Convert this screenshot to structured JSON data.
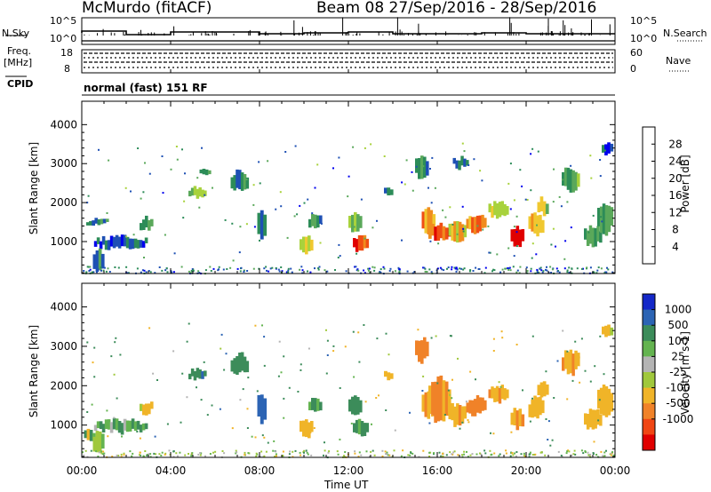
{
  "header": {
    "station": "McMurdo (fitACF)",
    "beam_and_dates": "Beam 08  27/Sep/2016 - 28/Sep/2016"
  },
  "strip_panels": {
    "nsky_label": "N.Sky",
    "nsearch_label": "N.Search",
    "nsky_ticks": [
      "10^5",
      "10^0"
    ],
    "nsearch_ticks": [
      "10^5",
      "10^0"
    ],
    "freq_label_line1": "Freq.",
    "freq_label_line2": "[MHz]",
    "freq_ticks": [
      "18",
      "8"
    ],
    "nave_label": "Nave",
    "nave_ticks": [
      "60",
      "0"
    ],
    "cpid_label": "CPID",
    "cpid_value": "normal (fast) 151 RF"
  },
  "colors": {
    "power_scale": [
      "#0000ee",
      "#1e50b4",
      "#2c8c58",
      "#5aa85a",
      "#a8d23c",
      "#f0c830",
      "#f08c1e",
      "#f04e14",
      "#e00000"
    ],
    "velocity_scale": [
      "#1428c8",
      "#2c64b4",
      "#3c8c5a",
      "#64b450",
      "#b4b4b4",
      "#a0c83c",
      "#f0b428",
      "#f08228",
      "#f04614",
      "#e00000"
    ]
  },
  "chart_data": [
    {
      "type": "heatmap",
      "title": "",
      "xlabel": "Time UT",
      "ylabel": "Slant Range [km]",
      "x_ticks": [
        "00:00",
        "04:00",
        "08:00",
        "12:00",
        "16:00",
        "20:00",
        "00:00"
      ],
      "x_range_hours": [
        0,
        24
      ],
      "y_ticks": [
        "1000",
        "2000",
        "3000",
        "4000"
      ],
      "ylim": [
        180,
        4600
      ],
      "colorbar": {
        "label": "Power [dB]",
        "ticks": [
          "4",
          "8",
          "12",
          "16",
          "20",
          "24",
          "28"
        ],
        "range": [
          0,
          32
        ]
      },
      "patches": [
        {
          "t": [
            0.55,
            2.95
          ],
          "r": [
            820,
            1120
          ],
          "value": 6
        },
        {
          "t": [
            0.2,
            1.2
          ],
          "r": [
            1400,
            1550
          ],
          "value": 10
        },
        {
          "t": [
            0.5,
            1.0
          ],
          "r": [
            250,
            820
          ],
          "value": 8
        },
        {
          "t": [
            2.6,
            3.2
          ],
          "r": [
            1300,
            1600
          ],
          "value": 10
        },
        {
          "t": [
            4.8,
            5.6
          ],
          "r": [
            2150,
            2400
          ],
          "value": 14
        },
        {
          "t": [
            5.3,
            5.8
          ],
          "r": [
            2750,
            2900
          ],
          "value": 10
        },
        {
          "t": [
            6.7,
            7.5
          ],
          "r": [
            2300,
            2800
          ],
          "value": 8
        },
        {
          "t": [
            7.9,
            8.3
          ],
          "r": [
            1050,
            1800
          ],
          "value": 8
        },
        {
          "t": [
            9.8,
            10.4
          ],
          "r": [
            700,
            1150
          ],
          "value": 18
        },
        {
          "t": [
            10.2,
            10.8
          ],
          "r": [
            1350,
            1700
          ],
          "value": 10
        },
        {
          "t": [
            12.2,
            12.9
          ],
          "r": [
            750,
            1150
          ],
          "value": 28
        },
        {
          "t": [
            12.0,
            12.6
          ],
          "r": [
            1200,
            1700
          ],
          "value": 14
        },
        {
          "t": [
            13.6,
            14.0
          ],
          "r": [
            2200,
            2400
          ],
          "value": 8
        },
        {
          "t": [
            15.3,
            15.9
          ],
          "r": [
            1200,
            1900
          ],
          "value": 22
        },
        {
          "t": [
            15.6,
            16.6
          ],
          "r": [
            1050,
            1450
          ],
          "value": 26
        },
        {
          "t": [
            16.5,
            17.3
          ],
          "r": [
            1000,
            1550
          ],
          "value": 20
        },
        {
          "t": [
            17.3,
            18.2
          ],
          "r": [
            1250,
            1700
          ],
          "value": 24
        },
        {
          "t": [
            18.3,
            19.2
          ],
          "r": [
            1600,
            2000
          ],
          "value": 16
        },
        {
          "t": [
            19.3,
            19.9
          ],
          "r": [
            900,
            1400
          ],
          "value": 28
        },
        {
          "t": [
            20.1,
            20.8
          ],
          "r": [
            1150,
            1700
          ],
          "value": 22
        },
        {
          "t": [
            20.5,
            21.0
          ],
          "r": [
            1700,
            2100
          ],
          "value": 16
        },
        {
          "t": [
            22.6,
            23.4
          ],
          "r": [
            900,
            1400
          ],
          "value": 12
        },
        {
          "t": [
            23.2,
            23.9
          ],
          "r": [
            1200,
            2000
          ],
          "value": 10
        },
        {
          "t": [
            15.0,
            15.6
          ],
          "r": [
            2600,
            3200
          ],
          "value": 10
        },
        {
          "t": [
            16.7,
            17.4
          ],
          "r": [
            2900,
            3150
          ],
          "value": 8
        },
        {
          "t": [
            21.6,
            22.4
          ],
          "r": [
            2300,
            2900
          ],
          "value": 12
        },
        {
          "t": [
            23.4,
            23.9
          ],
          "r": [
            3200,
            3500
          ],
          "value": 6
        }
      ]
    },
    {
      "type": "heatmap",
      "title": "",
      "xlabel": "Time UT",
      "ylabel": "Slant Range [km]",
      "x_ticks": [
        "00:00",
        "04:00",
        "08:00",
        "12:00",
        "16:00",
        "20:00",
        "00:00"
      ],
      "x_range_hours": [
        0,
        24
      ],
      "y_ticks": [
        "1000",
        "2000",
        "3000",
        "4000"
      ],
      "ylim": [
        180,
        4600
      ],
      "colorbar": {
        "label": "Velocity [m s-1]",
        "ticks": [
          "1000",
          "500",
          "100",
          "25",
          "-25",
          "-100",
          "-500",
          "-1000"
        ],
        "range": [
          1000,
          -1000
        ]
      },
      "patches": [
        {
          "t": [
            0.55,
            2.95
          ],
          "r": [
            820,
            1120
          ],
          "value": 150
        },
        {
          "t": [
            0.1,
            0.6
          ],
          "r": [
            600,
            900
          ],
          "value": 0
        },
        {
          "t": [
            0.5,
            1.0
          ],
          "r": [
            250,
            820
          ],
          "value": 40
        },
        {
          "t": [
            2.6,
            3.2
          ],
          "r": [
            1300,
            1600
          ],
          "value": -200
        },
        {
          "t": [
            4.8,
            5.6
          ],
          "r": [
            2150,
            2400
          ],
          "value": 400
        },
        {
          "t": [
            6.7,
            7.5
          ],
          "r": [
            2300,
            2800
          ],
          "value": 300
        },
        {
          "t": [
            7.9,
            8.3
          ],
          "r": [
            1050,
            1800
          ],
          "value": 700
        },
        {
          "t": [
            9.8,
            10.4
          ],
          "r": [
            700,
            1150
          ],
          "value": -400
        },
        {
          "t": [
            10.2,
            10.8
          ],
          "r": [
            1350,
            1700
          ],
          "value": 200
        },
        {
          "t": [
            12.2,
            12.9
          ],
          "r": [
            750,
            1150
          ],
          "value": 200
        },
        {
          "t": [
            12.0,
            12.6
          ],
          "r": [
            1200,
            1700
          ],
          "value": 300
        },
        {
          "t": [
            13.6,
            14.0
          ],
          "r": [
            2200,
            2400
          ],
          "value": -300
        },
        {
          "t": [
            15.3,
            15.9
          ],
          "r": [
            1200,
            1900
          ],
          "value": -400
        },
        {
          "t": [
            15.6,
            16.6
          ],
          "r": [
            1050,
            2200
          ],
          "value": -500
        },
        {
          "t": [
            16.5,
            17.3
          ],
          "r": [
            1000,
            1550
          ],
          "value": -400
        },
        {
          "t": [
            17.3,
            18.2
          ],
          "r": [
            1250,
            1700
          ],
          "value": -600
        },
        {
          "t": [
            18.3,
            19.2
          ],
          "r": [
            1600,
            2000
          ],
          "value": -450
        },
        {
          "t": [
            19.3,
            19.9
          ],
          "r": [
            900,
            1400
          ],
          "value": -500
        },
        {
          "t": [
            20.1,
            20.8
          ],
          "r": [
            1150,
            1700
          ],
          "value": -300
        },
        {
          "t": [
            20.5,
            21.0
          ],
          "r": [
            1700,
            2100
          ],
          "value": -200
        },
        {
          "t": [
            22.6,
            23.4
          ],
          "r": [
            900,
            1400
          ],
          "value": -250
        },
        {
          "t": [
            23.2,
            23.9
          ],
          "r": [
            1200,
            2000
          ],
          "value": -350
        },
        {
          "t": [
            15.0,
            15.6
          ],
          "r": [
            2600,
            3200
          ],
          "value": -600
        },
        {
          "t": [
            21.6,
            22.4
          ],
          "r": [
            2300,
            2900
          ],
          "value": -450
        },
        {
          "t": [
            23.4,
            23.9
          ],
          "r": [
            3200,
            3500
          ],
          "value": -200
        }
      ]
    }
  ]
}
